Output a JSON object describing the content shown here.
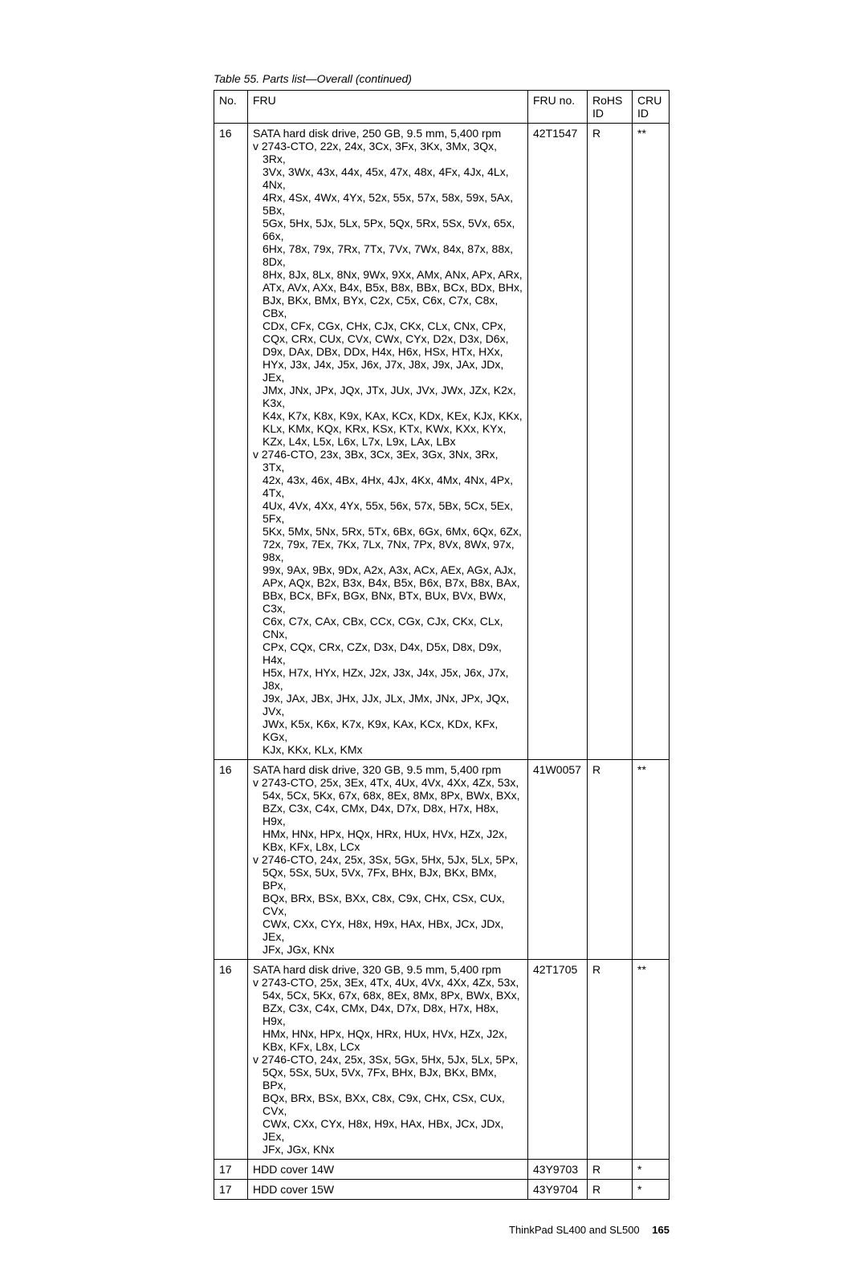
{
  "caption": "Table 55. Parts list—Overall (continued)",
  "headers": {
    "no": "No.",
    "fru": "FRU",
    "fruno": "FRU no.",
    "rohs": "RoHS ID",
    "cru": "CRU ID"
  },
  "rows": [
    {
      "no": "16",
      "fru": {
        "title": "SATA hard disk drive, 250 GB, 9.5 mm, 5,400 rpm",
        "bullets": [
          {
            "first": "v 2743-CTO, 22x, 24x, 3Cx, 3Fx, 3Kx, 3Mx, 3Qx, 3Rx,",
            "wraps": [
              "3Vx, 3Wx, 43x, 44x, 45x, 47x, 48x, 4Fx, 4Jx, 4Lx, 4Nx,",
              "4Rx, 4Sx, 4Wx, 4Yx, 52x, 55x, 57x, 58x, 59x, 5Ax, 5Bx,",
              "5Gx, 5Hx, 5Jx, 5Lx, 5Px, 5Qx, 5Rx, 5Sx, 5Vx, 65x, 66x,",
              "6Hx, 78x, 79x, 7Rx, 7Tx, 7Vx, 7Wx, 84x, 87x, 88x, 8Dx,",
              "8Hx, 8Jx, 8Lx, 8Nx, 9Wx, 9Xx, AMx, ANx, APx, ARx,",
              "ATx, AVx, AXx, B4x, B5x, B8x, BBx, BCx, BDx, BHx,",
              "BJx, BKx, BMx, BYx, C2x, C5x, C6x, C7x, C8x, CBx,",
              "CDx, CFx, CGx, CHx, CJx, CKx, CLx, CNx, CPx,",
              "CQx, CRx, CUx, CVx, CWx, CYx, D2x, D3x, D6x,",
              "D9x, DAx, DBx, DDx, H4x, H6x, HSx, HTx, HXx,",
              "HYx, J3x, J4x, J5x, J6x, J7x, J8x, J9x, JAx, JDx, JEx,",
              "JMx, JNx, JPx, JQx, JTx, JUx, JVx, JWx, JZx, K2x, K3x,",
              "K4x, K7x, K8x, K9x, KAx, KCx, KDx, KEx, KJx, KKx,",
              "KLx, KMx, KQx, KRx, KSx, KTx, KWx, KXx, KYx,",
              "KZx, L4x, L5x, L6x, L7x, L9x, LAx, LBx"
            ]
          },
          {
            "first": "v 2746-CTO, 23x, 3Bx, 3Cx, 3Ex, 3Gx, 3Nx, 3Rx, 3Tx,",
            "wraps": [
              "42x, 43x, 46x, 4Bx, 4Hx, 4Jx, 4Kx, 4Mx, 4Nx, 4Px, 4Tx,",
              "4Ux, 4Vx, 4Xx, 4Yx, 55x, 56x, 57x, 5Bx, 5Cx, 5Ex, 5Fx,",
              "5Kx, 5Mx, 5Nx, 5Rx, 5Tx, 6Bx, 6Gx, 6Mx, 6Qx, 6Zx,",
              "72x, 79x, 7Ex, 7Kx, 7Lx, 7Nx, 7Px, 8Vx, 8Wx, 97x, 98x,",
              "99x, 9Ax, 9Bx, 9Dx, A2x, A3x, ACx, AEx, AGx, AJx,",
              "APx, AQx, B2x, B3x, B4x, B5x, B6x, B7x, B8x, BAx,",
              "BBx, BCx, BFx, BGx, BNx, BTx, BUx, BVx, BWx, C3x,",
              "C6x, C7x, CAx, CBx, CCx, CGx, CJx, CKx, CLx, CNx,",
              "CPx, CQx, CRx, CZx, D3x, D4x, D5x, D8x, D9x, H4x,",
              "H5x, H7x, HYx, HZx, J2x, J3x, J4x, J5x, J6x, J7x, J8x,",
              "J9x, JAx, JBx, JHx, JJx, JLx, JMx, JNx, JPx, JQx, JVx,",
              "JWx, K5x, K6x, K7x, K9x, KAx, KCx, KDx, KFx, KGx,",
              "KJx, KKx, KLx, KMx"
            ]
          }
        ]
      },
      "fruno": "42T1547",
      "rohs": "R",
      "cru": "**"
    },
    {
      "no": "16",
      "fru": {
        "title": "SATA hard disk drive, 320 GB, 9.5 mm, 5,400 rpm",
        "bullets": [
          {
            "first": "v 2743-CTO, 25x, 3Ex, 4Tx, 4Ux, 4Vx, 4Xx, 4Zx, 53x,",
            "wraps": [
              "54x, 5Cx, 5Kx, 67x, 68x, 8Ex, 8Mx, 8Px, BWx, BXx,",
              "BZx, C3x, C4x, CMx, D4x, D7x, D8x, H7x, H8x, H9x,",
              "HMx, HNx, HPx, HQx, HRx, HUx, HVx, HZx, J2x,",
              "KBx, KFx, L8x, LCx"
            ]
          },
          {
            "first": "v 2746-CTO, 24x, 25x, 3Sx, 5Gx, 5Hx, 5Jx, 5Lx, 5Px,",
            "wraps": [
              "5Qx, 5Sx, 5Ux, 5Vx, 7Fx, BHx, BJx, BKx, BMx, BPx,",
              "BQx, BRx, BSx, BXx, C8x, C9x, CHx, CSx, CUx, CVx,",
              "CWx, CXx, CYx, H8x, H9x, HAx, HBx, JCx, JDx, JEx,",
              "JFx, JGx, KNx"
            ]
          }
        ]
      },
      "fruno": "41W0057",
      "rohs": "R",
      "cru": "**"
    },
    {
      "no": "16",
      "fru": {
        "title": "SATA hard disk drive, 320 GB, 9.5 mm, 5,400 rpm",
        "bullets": [
          {
            "first": "v 2743-CTO, 25x, 3Ex, 4Tx, 4Ux, 4Vx, 4Xx, 4Zx, 53x,",
            "wraps": [
              "54x, 5Cx, 5Kx, 67x, 68x, 8Ex, 8Mx, 8Px, BWx, BXx,",
              "BZx, C3x, C4x, CMx, D4x, D7x, D8x, H7x, H8x, H9x,",
              "HMx, HNx, HPx, HQx, HRx, HUx, HVx, HZx, J2x,",
              "KBx, KFx, L8x, LCx"
            ]
          },
          {
            "first": "v 2746-CTO, 24x, 25x, 3Sx, 5Gx, 5Hx, 5Jx, 5Lx, 5Px,",
            "wraps": [
              "5Qx, 5Sx, 5Ux, 5Vx, 7Fx, BHx, BJx, BKx, BMx, BPx,",
              "BQx, BRx, BSx, BXx, C8x, C9x, CHx, CSx, CUx, CVx,",
              "CWx, CXx, CYx, H8x, H9x, HAx, HBx, JCx, JDx, JEx,",
              "JFx, JGx, KNx"
            ]
          }
        ]
      },
      "fruno": "42T1705",
      "rohs": "R",
      "cru": "**"
    },
    {
      "no": "17",
      "fru": {
        "title": "HDD cover 14W",
        "bullets": []
      },
      "fruno": "43Y9703",
      "rohs": "R",
      "cru": "*"
    },
    {
      "no": "17",
      "fru": {
        "title": "HDD cover 15W",
        "bullets": []
      },
      "fruno": "43Y9704",
      "rohs": "R",
      "cru": "*"
    }
  ],
  "footer": {
    "text": "ThinkPad SL400 and SL500",
    "page": "165"
  }
}
